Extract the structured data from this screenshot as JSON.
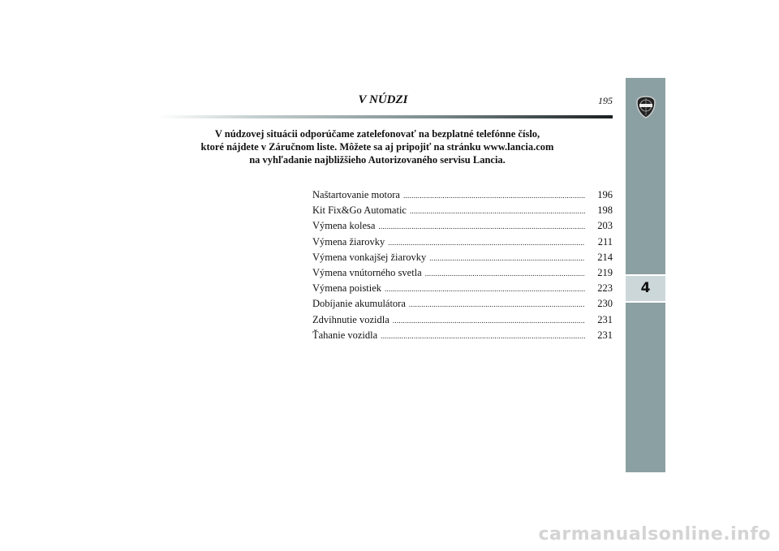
{
  "header": {
    "title": "V NÚDZI",
    "page_number": "195"
  },
  "intro": [
    "V núdzovej situácii odporúčame zatelefonovať na bezplatné telefónne číslo,",
    "ktoré nájdete v Záručnom liste. Môžete sa aj pripojiť na stránku www.lancia.com",
    "na vyhľadanie najbližšieho Autorizovaného servisu Lancia."
  ],
  "toc": [
    {
      "label": "Naštartovanie motora",
      "page": "196"
    },
    {
      "label": "Kit Fix&Go Automatic",
      "page": "198"
    },
    {
      "label": "Výmena kolesa",
      "page": "203"
    },
    {
      "label": "Výmena žiarovky",
      "page": "211"
    },
    {
      "label": "Výmena vonkajšej žiarovky",
      "page": "214"
    },
    {
      "label": "Výmena vnútorného svetla",
      "page": "219"
    },
    {
      "label": "Výmena poistiek",
      "page": "223"
    },
    {
      "label": "Dobíjanie akumulátora",
      "page": "230"
    },
    {
      "label": "Zdvihnutie vozidla",
      "page": "231"
    },
    {
      "label": "Ťahanie vozidla",
      "page": "231"
    }
  ],
  "sidebar": {
    "chapter_tab": "4",
    "logo_text": "LANCIA",
    "color": "#8ba0a3"
  },
  "watermark": "carmanualsonline.info"
}
